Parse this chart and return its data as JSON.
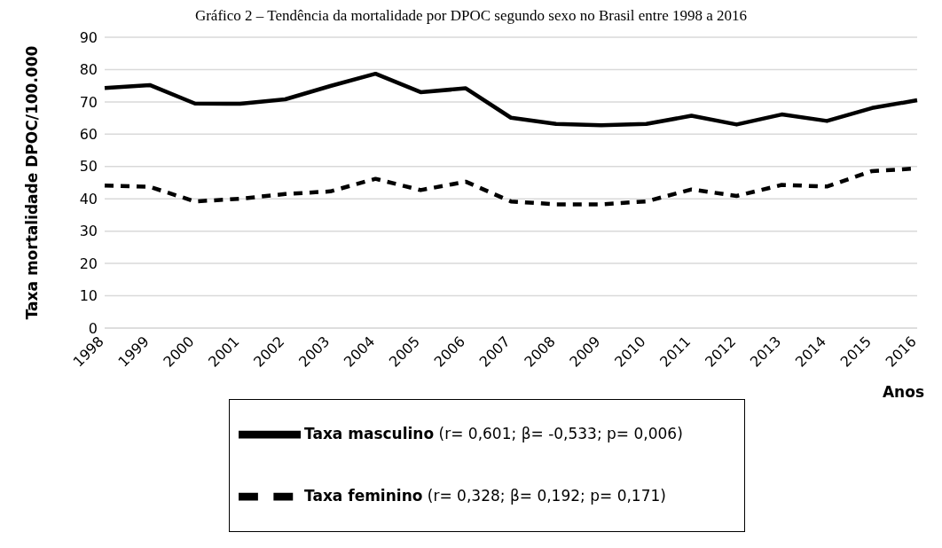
{
  "chart_data": {
    "type": "line",
    "title": "Gráfico 2 – Tendência da mortalidade por DPOC segundo sexo no Brasil entre 1998 a 2016",
    "xlabel": "Anos",
    "ylabel": "Taxa mortalidade DPOC/100.000",
    "categories": [
      "1998",
      "1999",
      "2000",
      "2001",
      "2002",
      "2003",
      "2004",
      "2005",
      "2006",
      "2007",
      "2008",
      "2009",
      "2010",
      "2011",
      "2012",
      "2013",
      "2014",
      "2015",
      "2016"
    ],
    "series": [
      {
        "name": "Taxa masculino (r= 0,601; β= -0,533; p= 0,006)",
        "color": "#000000",
        "line_style": "solid",
        "values": [
          74.3,
          75.2,
          69.5,
          69.4,
          70.8,
          74.9,
          78.7,
          73.0,
          74.2,
          65.1,
          63.2,
          62.8,
          63.2,
          65.7,
          63.0,
          66.1,
          64.1,
          68.1,
          70.5
        ]
      },
      {
        "name": "Taxa feminino (r= 0,328; β= 0,192; p= 0,171)",
        "color": "#000000",
        "line_style": "dashed",
        "values": [
          44.1,
          43.7,
          39.2,
          40.0,
          41.5,
          42.3,
          46.2,
          42.7,
          45.3,
          39.2,
          38.3,
          38.3,
          39.2,
          42.9,
          40.9,
          44.3,
          43.8,
          48.6,
          49.4
        ]
      }
    ],
    "ylim": [
      0,
      90
    ],
    "yticks": [
      0,
      10,
      20,
      30,
      40,
      50,
      60,
      70,
      80,
      90
    ],
    "grid": "y",
    "legend": "bottom",
    "marker": "none"
  }
}
